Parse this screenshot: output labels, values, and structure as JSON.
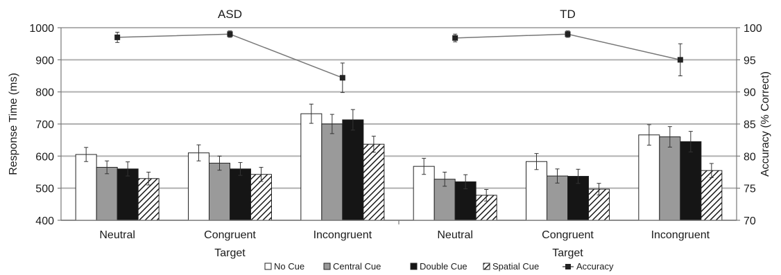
{
  "chart_data": {
    "type": "bar",
    "panels": [
      {
        "title": "ASD",
        "categories": [
          "Neutral",
          "Congruent",
          "Incongruent"
        ],
        "series": [
          {
            "name": "No Cue",
            "values": [
              605,
              610,
              732
            ],
            "errors": [
              22,
              25,
              30
            ]
          },
          {
            "name": "Central Cue",
            "values": [
              565,
              578,
              700
            ],
            "errors": [
              20,
              22,
              30
            ]
          },
          {
            "name": "Double Cue",
            "values": [
              560,
              560,
              713
            ],
            "errors": [
              22,
              20,
              32
            ]
          },
          {
            "name": "Spatial Cue",
            "values": [
              530,
              543,
              637
            ],
            "errors": [
              20,
              22,
              25
            ]
          }
        ],
        "accuracy": {
          "values": [
            98.5,
            99.0,
            92.2
          ],
          "errors": [
            0.8,
            0.5,
            2.3
          ]
        }
      },
      {
        "title": "TD",
        "categories": [
          "Neutral",
          "Congruent",
          "Incongruent"
        ],
        "series": [
          {
            "name": "No Cue",
            "values": [
              568,
              583,
              666
            ],
            "errors": [
              25,
              25,
              32
            ]
          },
          {
            "name": "Central Cue",
            "values": [
              528,
              538,
              660
            ],
            "errors": [
              22,
              22,
              32
            ]
          },
          {
            "name": "Double Cue",
            "values": [
              520,
              537,
              645
            ],
            "errors": [
              22,
              22,
              32
            ]
          },
          {
            "name": "Spatial Cue",
            "values": [
              478,
              497,
              555
            ],
            "errors": [
              18,
              18,
              22
            ]
          }
        ],
        "accuracy": {
          "values": [
            98.4,
            99.0,
            95.0
          ],
          "errors": [
            0.6,
            0.5,
            2.5
          ]
        }
      }
    ],
    "xlabel": "Target",
    "ylabel": "Response Time (ms)",
    "ylabel_right": "Accuracy (% Correct)",
    "ylim": [
      400,
      1000
    ],
    "yticks": [
      "400",
      "500",
      "600",
      "700",
      "800",
      "900",
      "1000"
    ],
    "ylim_right": [
      70,
      100
    ],
    "yticks_right": [
      "70",
      "75",
      "80",
      "85",
      "90",
      "95",
      "100"
    ],
    "legend": [
      "No Cue",
      "Central Cue",
      "Double Cue",
      "Spatial Cue",
      "Accuracy"
    ],
    "legend_position": "bottom",
    "grid": true,
    "colors": {
      "No Cue": "#ffffff",
      "Central Cue": "#9a9a9a",
      "Double Cue": "#151515",
      "Spatial Cue": "hatched",
      "Accuracy": "#222222",
      "gridlines": "#b0b0b0"
    }
  }
}
